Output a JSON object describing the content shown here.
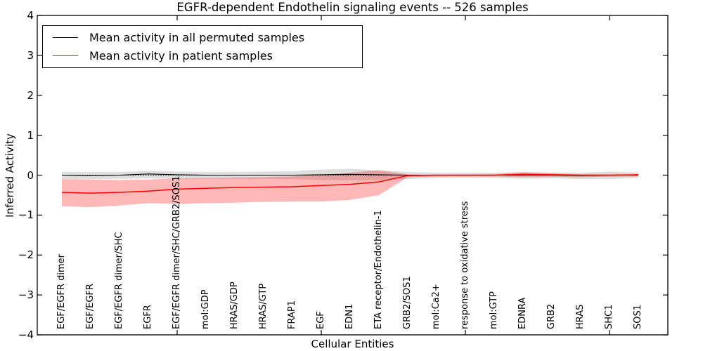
{
  "chart_data": {
    "type": "line",
    "title": "EGFR-dependent Endothelin signaling events -- 526 samples",
    "xlabel": "Cellular Entities",
    "ylabel": "Inferred Activity",
    "ylim": [
      -4,
      4
    ],
    "yticks": [
      4,
      3,
      2,
      1,
      0,
      -1,
      -2,
      -3,
      -4
    ],
    "x_major_tick_indices": [
      4,
      9,
      14,
      19
    ],
    "grid": false,
    "legend_position": "upper-left",
    "categories": [
      "EGF/EGFR dimer",
      "EGF/EGFR",
      "EGF/EGFR dimer/SHC",
      "EGFR",
      "EGF/EGFR dimer/SHC/GRB2/SOS1",
      "mol:GDP",
      "HRAS/GDP",
      "HRAS/GTP",
      "FRAP1",
      "EGF",
      "EDN1",
      "ETA receptor/Endothelin-1",
      "GRB2/SOS1",
      "mol:Ca2+",
      "response to oxidative stress",
      "mol:GTP",
      "EDNRA",
      "GRB2",
      "HRAS",
      "SHC1",
      "SOS1"
    ],
    "series": [
      {
        "name": "Mean activity in all permuted samples",
        "color": "#000000",
        "band_color": "rgba(0,0,0,0.13)",
        "values": [
          0.0,
          -0.01,
          0.0,
          0.03,
          0.01,
          0.0,
          0.0,
          0.0,
          0.0,
          0.01,
          0.02,
          0.01,
          0.0,
          0.0,
          0.0,
          0.0,
          0.0,
          0.0,
          -0.01,
          0.0,
          0.0
        ],
        "band_high": [
          0.08,
          0.08,
          0.08,
          0.11,
          0.09,
          0.08,
          0.08,
          0.09,
          0.1,
          0.14,
          0.16,
          0.12,
          0.08,
          0.06,
          0.06,
          0.06,
          0.08,
          0.07,
          0.06,
          0.09,
          0.07
        ],
        "band_low": [
          -0.1,
          -0.1,
          -0.09,
          -0.08,
          -0.09,
          -0.09,
          -0.09,
          -0.09,
          -0.1,
          -0.12,
          -0.13,
          -0.12,
          -0.1,
          -0.07,
          -0.06,
          -0.07,
          -0.09,
          -0.08,
          -0.1,
          -0.1,
          -0.07
        ]
      },
      {
        "name": "Mean activity in patient samples",
        "color": "#ff0000",
        "band_color": "rgba(255,0,0,0.28)",
        "values": [
          -0.43,
          -0.45,
          -0.43,
          -0.4,
          -0.35,
          -0.33,
          -0.31,
          -0.3,
          -0.29,
          -0.26,
          -0.23,
          -0.17,
          -0.01,
          0.0,
          0.0,
          0.0,
          0.02,
          0.01,
          0.0,
          0.0,
          0.01
        ],
        "band_high": [
          -0.1,
          -0.11,
          -0.12,
          -0.11,
          -0.08,
          -0.07,
          -0.06,
          -0.05,
          -0.03,
          0.01,
          0.06,
          0.12,
          0.02,
          0.01,
          0.01,
          0.02,
          0.07,
          0.04,
          0.02,
          0.02,
          0.02
        ],
        "band_low": [
          -0.78,
          -0.8,
          -0.76,
          -0.7,
          -0.72,
          -0.7,
          -0.69,
          -0.67,
          -0.66,
          -0.66,
          -0.62,
          -0.5,
          -0.05,
          -0.03,
          -0.03,
          -0.03,
          -0.05,
          -0.04,
          -0.05,
          -0.04,
          -0.03
        ]
      }
    ],
    "zero_line": {
      "value": 0,
      "style": "dotted",
      "color": "#000000"
    }
  }
}
